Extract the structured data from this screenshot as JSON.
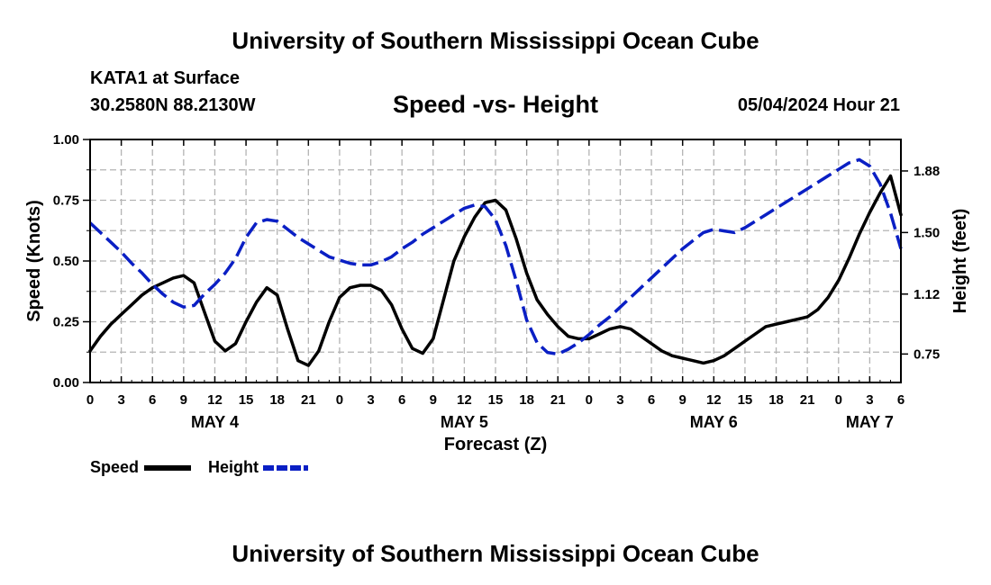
{
  "header": {
    "title": "University of Southern Mississippi Ocean Cube",
    "station": "KATA1 at Surface",
    "coords": "30.2580N  88.2130W",
    "subtitle": "Speed -vs- Height",
    "datetime": "05/04/2024 Hour 21"
  },
  "footer": {
    "title": "University of Southern Mississippi Ocean Cube"
  },
  "legend": {
    "speed": "Speed",
    "height": "Height"
  },
  "colors": {
    "speed": "#000000",
    "height": "#0a1fc4",
    "grid": "#b4b4b4"
  },
  "chart_data": {
    "type": "line",
    "title": "Speed -vs- Height",
    "xlabel": "Forecast (Z)",
    "ylabel_left": "Speed (Knots)",
    "ylabel_right": "Height (feet)",
    "x_unit": "hours since 00Z May 4",
    "xlim": [
      0,
      78
    ],
    "ylim_left": [
      0,
      1.0
    ],
    "ylim_right": [
      0.5742,
      2.0742
    ],
    "x_ticks": [
      0,
      3,
      6,
      9,
      12,
      15,
      18,
      21,
      24,
      27,
      30,
      33,
      36,
      39,
      42,
      45,
      48,
      51,
      54,
      57,
      60,
      63,
      66,
      69,
      72,
      75,
      78
    ],
    "x_tick_labels": [
      "0",
      "3",
      "6",
      "9",
      "12",
      "15",
      "18",
      "21",
      "0",
      "3",
      "6",
      "9",
      "12",
      "15",
      "18",
      "21",
      "0",
      "3",
      "6",
      "9",
      "12",
      "15",
      "18",
      "21",
      "0",
      "3",
      "6"
    ],
    "day_labels": [
      {
        "x": 12,
        "label": "MAY 4"
      },
      {
        "x": 36,
        "label": "MAY 5"
      },
      {
        "x": 60,
        "label": "MAY 6"
      },
      {
        "x": 75,
        "label": "MAY 7"
      }
    ],
    "y_ticks_left": [
      0,
      0.25,
      0.5,
      0.75,
      1.0
    ],
    "y_tick_labels_left": [
      "0.00",
      "0.25",
      "0.50",
      "0.75",
      "1.00"
    ],
    "y_ticks_right": [
      0.75,
      1.12,
      1.5,
      1.88
    ],
    "y_tick_labels_right": [
      "0.75",
      "1.12",
      "1.50",
      "1.88"
    ],
    "grid": true,
    "series": [
      {
        "name": "Speed",
        "axis": "left",
        "style": "solid",
        "x": [
          0,
          1,
          2,
          3,
          4,
          5,
          6,
          7,
          8,
          9,
          10,
          11,
          12,
          13,
          14,
          15,
          16,
          17,
          18,
          19,
          20,
          21,
          22,
          23,
          24,
          25,
          26,
          27,
          28,
          29,
          30,
          31,
          32,
          33,
          34,
          35,
          36,
          37,
          38,
          39,
          40,
          41,
          42,
          43,
          44,
          45,
          46,
          47,
          48,
          49,
          50,
          51,
          52,
          53,
          54,
          55,
          56,
          57,
          58,
          59,
          60,
          61,
          62,
          63,
          64,
          65,
          66,
          67,
          68,
          69,
          70,
          71,
          72,
          73,
          74,
          75,
          76,
          77,
          78
        ],
        "values": [
          0.13,
          0.19,
          0.24,
          0.28,
          0.32,
          0.36,
          0.39,
          0.41,
          0.43,
          0.44,
          0.41,
          0.29,
          0.17,
          0.13,
          0.16,
          0.25,
          0.33,
          0.39,
          0.36,
          0.22,
          0.09,
          0.07,
          0.13,
          0.25,
          0.35,
          0.39,
          0.4,
          0.4,
          0.38,
          0.32,
          0.22,
          0.14,
          0.12,
          0.18,
          0.34,
          0.5,
          0.6,
          0.68,
          0.74,
          0.75,
          0.71,
          0.59,
          0.45,
          0.34,
          0.28,
          0.23,
          0.19,
          0.18,
          0.18,
          0.2,
          0.22,
          0.23,
          0.22,
          0.19,
          0.16,
          0.13,
          0.11,
          0.1,
          0.09,
          0.08,
          0.09,
          0.11,
          0.14,
          0.17,
          0.2,
          0.23,
          0.24,
          0.25,
          0.26,
          0.27,
          0.3,
          0.35,
          0.42,
          0.51,
          0.61,
          0.7,
          0.78,
          0.85,
          0.69
        ]
      },
      {
        "name": "Height",
        "axis": "right",
        "style": "dashed",
        "x": [
          0,
          1,
          2,
          3,
          4,
          5,
          6,
          7,
          8,
          9,
          10,
          11,
          12,
          13,
          14,
          15,
          16,
          17,
          18,
          19,
          20,
          21,
          22,
          23,
          24,
          25,
          26,
          27,
          28,
          29,
          30,
          31,
          32,
          33,
          34,
          35,
          36,
          37,
          38,
          39,
          40,
          41,
          42,
          43,
          44,
          45,
          46,
          47,
          48,
          49,
          50,
          51,
          52,
          53,
          54,
          55,
          56,
          57,
          58,
          59,
          60,
          61,
          62,
          63,
          64,
          65,
          66,
          67,
          68,
          69,
          70,
          71,
          72,
          73,
          74,
          75,
          76,
          77,
          78
        ],
        "values": [
          1.56,
          1.5,
          1.44,
          1.38,
          1.31,
          1.25,
          1.18,
          1.12,
          1.07,
          1.04,
          1.05,
          1.12,
          1.18,
          1.25,
          1.34,
          1.47,
          1.56,
          1.58,
          1.57,
          1.52,
          1.47,
          1.43,
          1.39,
          1.35,
          1.33,
          1.31,
          1.3,
          1.3,
          1.32,
          1.35,
          1.4,
          1.44,
          1.49,
          1.53,
          1.57,
          1.61,
          1.65,
          1.67,
          1.66,
          1.58,
          1.42,
          1.2,
          0.96,
          0.82,
          0.76,
          0.75,
          0.78,
          0.82,
          0.87,
          0.93,
          0.98,
          1.04,
          1.1,
          1.16,
          1.22,
          1.28,
          1.34,
          1.4,
          1.45,
          1.5,
          1.52,
          1.51,
          1.5,
          1.53,
          1.57,
          1.61,
          1.65,
          1.69,
          1.73,
          1.77,
          1.81,
          1.85,
          1.89,
          1.93,
          1.95,
          1.91,
          1.8,
          1.62,
          1.4
        ]
      }
    ]
  }
}
